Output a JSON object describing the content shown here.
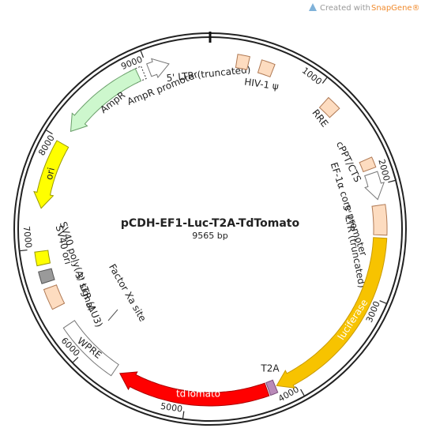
{
  "watermark": {
    "prefix": "Created with",
    "brand": "SnapGene®"
  },
  "map": {
    "name": "pCDH-EF1-Luc-T2A-TdTomato",
    "size": "9565 bp",
    "ticks": [
      1000,
      2000,
      3000,
      4000,
      5000,
      6000,
      7000,
      8000,
      9000
    ],
    "features": [
      {
        "name": "5' LTR (truncated)"
      },
      {
        "name": "AmpR promoter"
      },
      {
        "name": "AmpR"
      },
      {
        "name": "HIV-1 ψ"
      },
      {
        "name": "RRE"
      },
      {
        "name": "cPPT/CTS"
      },
      {
        "name": "EF-1α core promoter"
      },
      {
        "name": "5' LTR (truncated)"
      },
      {
        "name": "luciferase"
      },
      {
        "name": "T2A"
      },
      {
        "name": "tdTomato"
      },
      {
        "name": "WPRE"
      },
      {
        "name": "Factor Xa site"
      },
      {
        "name": "3' LTR (ΔU3)"
      },
      {
        "name": "SV40 ori"
      },
      {
        "name": "SV40 poly(A) signal"
      },
      {
        "name": "ori"
      }
    ]
  }
}
